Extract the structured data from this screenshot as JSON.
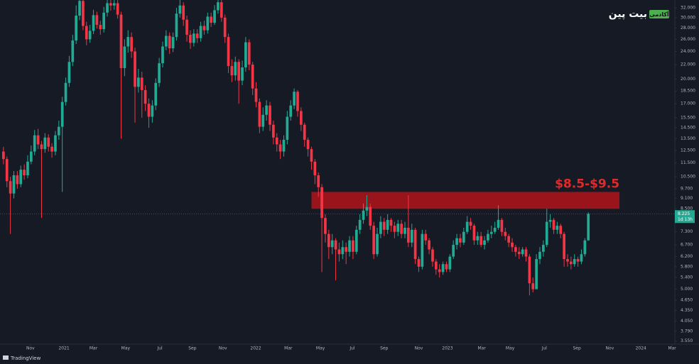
{
  "chart_data": {
    "type": "candlestick",
    "log_scale": true,
    "grid": false,
    "up_color": "#22ab94",
    "down_color": "#f23645",
    "zone_color": "#b2141a",
    "annotation_color": "#e12a2a",
    "ylim": [
      3.48,
      33.7
    ],
    "yticks": [
      {
        "value": 32,
        "label": "32.000"
      },
      {
        "value": 30,
        "label": "30.000"
      },
      {
        "value": 28,
        "label": "28.000"
      },
      {
        "value": 26,
        "label": "26.000"
      },
      {
        "value": 24,
        "label": "24.000"
      },
      {
        "value": 22,
        "label": "22.000"
      },
      {
        "value": 20,
        "label": "20.000"
      },
      {
        "value": 18.5,
        "label": "18.500"
      },
      {
        "value": 17,
        "label": "17.000"
      },
      {
        "value": 15.5,
        "label": "15.500"
      },
      {
        "value": 14.5,
        "label": "14.500"
      },
      {
        "value": 13.5,
        "label": "13.500"
      },
      {
        "value": 12.5,
        "label": "12.500"
      },
      {
        "value": 11.5,
        "label": "11.500"
      },
      {
        "value": 10.5,
        "label": "10.500"
      },
      {
        "value": 9.7,
        "label": "9.700"
      },
      {
        "value": 9.1,
        "label": "9.100"
      },
      {
        "value": 8.5,
        "label": "8.500"
      },
      {
        "value": 7.3,
        "label": "7.300"
      },
      {
        "value": 6.7,
        "label": "6.700"
      },
      {
        "value": 6.2,
        "label": "6.200"
      },
      {
        "value": 5.8,
        "label": "5.800"
      },
      {
        "value": 5.4,
        "label": "5.400"
      },
      {
        "value": 5,
        "label": "5.000"
      },
      {
        "value": 4.65,
        "label": "4.650"
      },
      {
        "value": 4.35,
        "label": "4.350"
      },
      {
        "value": 4.05,
        "label": "4.050"
      },
      {
        "value": 3.79,
        "label": "3.790"
      },
      {
        "value": 3.55,
        "label": "3.550"
      }
    ],
    "xlim": [
      -1,
      194
    ],
    "xticks": [
      {
        "value": 7.8,
        "label": "Nov"
      },
      {
        "value": 17.5,
        "label": "2021"
      },
      {
        "value": 26,
        "label": "Mar"
      },
      {
        "value": 35.3,
        "label": "May"
      },
      {
        "value": 45.2,
        "label": "Jul"
      },
      {
        "value": 54.6,
        "label": "Sep"
      },
      {
        "value": 63.4,
        "label": "Nov"
      },
      {
        "value": 72.9,
        "label": "2022"
      },
      {
        "value": 82.3,
        "label": "Mar"
      },
      {
        "value": 91.6,
        "label": "May"
      },
      {
        "value": 100.8,
        "label": "Jul"
      },
      {
        "value": 110,
        "label": "Sep"
      },
      {
        "value": 120,
        "label": "Nov"
      },
      {
        "value": 128.3,
        "label": "2023"
      },
      {
        "value": 138.2,
        "label": "Mar"
      },
      {
        "value": 146.4,
        "label": "May"
      },
      {
        "value": 156.3,
        "label": "Jul"
      },
      {
        "value": 165.7,
        "label": "Sep"
      },
      {
        "value": 175.2,
        "label": "Nov"
      },
      {
        "value": 184.2,
        "label": "2024"
      },
      {
        "value": 193.2,
        "label": "Mar"
      }
    ],
    "open": [
      12.4,
      11.8,
      10.2,
      9.4,
      10.6,
      10.0,
      11.0,
      10.6,
      11.6,
      12.4,
      13.8,
      13.0,
      12.6,
      13.6,
      12.8,
      12.4,
      13.8,
      14.6,
      17.2,
      19.5,
      22.4,
      25.8,
      30.4,
      33.5,
      28.4,
      26.0,
      27.5,
      30.5,
      28.6,
      27.8,
      31.0,
      33.0,
      32.5,
      33.0,
      30.6,
      21.5,
      24.8,
      26.4,
      24.0,
      19.0,
      20.2,
      18.6,
      17.0,
      15.6,
      16.8,
      19.5,
      22.2,
      24.8,
      26.6,
      24.5,
      26.4,
      30.8,
      32.5,
      29.6,
      26.8,
      25.4,
      27.0,
      26.2,
      28.4,
      27.6,
      30.2,
      29.0,
      31.5,
      33.2,
      30.0,
      26.4,
      21.8,
      20.5,
      22.4,
      19.8,
      21.6,
      25.5,
      22.0,
      18.8,
      17.2,
      14.6,
      15.8,
      16.8,
      14.8,
      13.6,
      13.0,
      12.4,
      13.4,
      15.6,
      16.8,
      18.4,
      16.2,
      14.8,
      13.4,
      12.6,
      11.6,
      10.6,
      9.8,
      8.0,
      7.2,
      6.6,
      6.9,
      6.5,
      6.3,
      6.6,
      6.4,
      6.9,
      6.4,
      7.4,
      7.9,
      8.4,
      8.6,
      7.6,
      6.3,
      7.2,
      7.8,
      7.4,
      7.9,
      7.6,
      7.3,
      7.7,
      7.2,
      7.5,
      6.8,
      7.4,
      6.1,
      5.8,
      7.2,
      6.9,
      6.5,
      6.0,
      5.7,
      5.6,
      5.9,
      5.7,
      6.2,
      6.7,
      7.0,
      6.8,
      7.3,
      7.8,
      7.6,
      6.9,
      7.1,
      6.7,
      6.9,
      7.2,
      7.3,
      7.5,
      7.9,
      7.3,
      7.1,
      6.8,
      6.6,
      6.4,
      6.3,
      6.5,
      6.2,
      5.2,
      5.0,
      6.1,
      6.4,
      6.7,
      7.8,
      7.9,
      7.4,
      7.6,
      7.2,
      6.1,
      6.0,
      5.9,
      6.1,
      6.0,
      6.3,
      6.9
    ],
    "high": [
      12.8,
      12.0,
      10.5,
      10.9,
      10.9,
      11.3,
      11.4,
      12.1,
      12.9,
      14.3,
      14.4,
      13.3,
      14.0,
      13.9,
      13.1,
      14.2,
      15.2,
      17.8,
      20.2,
      23.3,
      26.8,
      32.5,
      36,
      35,
      29.2,
      28.6,
      31.6,
      31.2,
      29.4,
      32.2,
      35,
      35,
      35,
      34.2,
      31.2,
      26.0,
      27.6,
      27.2,
      24.6,
      21.4,
      21.0,
      19.2,
      17.6,
      17.4,
      20.1,
      23.0,
      25.6,
      27.6,
      27.2,
      27.2,
      32.0,
      35,
      33.2,
      30.4,
      27.6,
      27.8,
      27.8,
      29.2,
      29.4,
      31.0,
      31.0,
      32.6,
      35,
      34.0,
      30.6,
      27.0,
      22.8,
      23.2,
      22.8,
      22.6,
      26.4,
      26.0,
      22.4,
      19.6,
      17.6,
      16.6,
      17.4,
      17.2,
      15.2,
      14.0,
      13.4,
      13.8,
      16.2,
      17.4,
      18.8,
      18.6,
      16.6,
      15.0,
      13.6,
      12.8,
      11.8,
      10.8,
      10.0,
      8.2,
      7.4,
      7.2,
      7.0,
      6.8,
      6.9,
      6.8,
      7.1,
      7.1,
      7.6,
      8.2,
      8.8,
      9.3,
      8.8,
      7.8,
      7.5,
      8.1,
      8.0,
      8.2,
      8.0,
      7.8,
      7.9,
      7.9,
      7.8,
      9.3,
      7.7,
      7.5,
      6.2,
      7.4,
      7.4,
      7.0,
      6.6,
      6.1,
      5.9,
      6.0,
      6.0,
      6.3,
      6.9,
      7.2,
      7.2,
      7.5,
      8.1,
      8.0,
      7.7,
      7.3,
      7.3,
      7.1,
      7.4,
      7.6,
      7.8,
      8.7,
      8.0,
      7.5,
      7.2,
      7.0,
      6.7,
      6.6,
      6.6,
      6.6,
      6.3,
      5.4,
      6.3,
      6.6,
      6.9,
      8.5,
      8.2,
      8.0,
      7.8,
      7.7,
      7.3,
      6.3,
      6.2,
      6.3,
      6.2,
      6.5,
      7.0,
      8.3
    ],
    "low": [
      11.4,
      9.8,
      7.2,
      9.1,
      9.7,
      9.8,
      10.3,
      10.4,
      11.4,
      12.1,
      12.6,
      8.0,
      12.3,
      12.4,
      11.9,
      12.1,
      13.4,
      9.5,
      16.8,
      19.0,
      21.8,
      25.2,
      29.5,
      27.6,
      25.0,
      25.4,
      26.9,
      27.9,
      26.8,
      27.2,
      30.2,
      31.4,
      31.6,
      29.8,
      13.5,
      20.4,
      23.8,
      23.0,
      15.0,
      18.3,
      15.5,
      16.2,
      14.5,
      15.0,
      16.3,
      19.0,
      21.6,
      24.2,
      23.6,
      23.9,
      25.8,
      30.0,
      28.4,
      25.6,
      24.4,
      24.8,
      25.4,
      25.6,
      26.8,
      27.0,
      28.2,
      28.6,
      30.8,
      29.2,
      25.4,
      20.8,
      19.6,
      19.8,
      17.0,
      19.2,
      21.0,
      21.2,
      18.0,
      16.6,
      14.0,
      14.2,
      15.2,
      14.2,
      13.0,
      12.4,
      11.8,
      12.0,
      13.0,
      15.2,
      16.4,
      15.6,
      14.2,
      12.8,
      12.0,
      11.0,
      10.0,
      9.2,
      5.6,
      6.8,
      6.1,
      6.3,
      5.3,
      6.0,
      6.1,
      5.9,
      6.2,
      6.1,
      6.3,
      7.2,
      7.7,
      8.1,
      7.4,
      6.1,
      6.2,
      7.0,
      7.1,
      7.2,
      7.3,
      7.0,
      7.1,
      7.0,
      7.0,
      6.6,
      6.6,
      5.9,
      5.6,
      5.7,
      6.7,
      6.3,
      5.8,
      5.5,
      5.4,
      5.5,
      5.6,
      5.6,
      6.1,
      6.5,
      6.6,
      6.7,
      7.2,
      7.4,
      6.7,
      6.7,
      6.6,
      6.5,
      6.8,
      7.0,
      7.2,
      7.4,
      7.1,
      6.9,
      6.6,
      6.4,
      6.2,
      6.1,
      6.2,
      6.0,
      4.8,
      4.9,
      5.0,
      5.9,
      6.2,
      6.6,
      7.5,
      7.2,
      7.2,
      7.0,
      5.8,
      5.8,
      5.7,
      5.8,
      5.8,
      5.9,
      6.2,
      6.9
    ],
    "close": [
      11.8,
      10.2,
      9.4,
      10.6,
      10.0,
      11.0,
      10.6,
      11.6,
      12.4,
      13.8,
      13.0,
      12.6,
      13.6,
      12.8,
      12.4,
      13.8,
      14.6,
      17.2,
      19.5,
      22.4,
      25.8,
      30.4,
      33.5,
      28.4,
      26.0,
      27.5,
      30.5,
      28.6,
      27.8,
      31.0,
      33.0,
      32.5,
      33.0,
      30.6,
      21.5,
      24.8,
      26.4,
      24.0,
      19.0,
      20.2,
      18.6,
      17.0,
      15.6,
      16.8,
      19.5,
      22.2,
      24.8,
      26.6,
      24.5,
      26.4,
      30.8,
      32.5,
      29.6,
      26.8,
      25.4,
      27.0,
      26.2,
      28.4,
      27.6,
      30.2,
      29.0,
      31.5,
      33.2,
      30.0,
      26.4,
      21.8,
      20.5,
      22.4,
      19.8,
      21.6,
      25.5,
      22.0,
      18.8,
      17.2,
      14.6,
      15.8,
      16.8,
      14.8,
      13.6,
      13.0,
      12.4,
      13.4,
      15.6,
      16.8,
      18.4,
      16.2,
      14.8,
      13.4,
      12.6,
      11.6,
      10.6,
      9.8,
      8.0,
      7.2,
      6.6,
      6.9,
      6.5,
      6.3,
      6.6,
      6.4,
      6.9,
      6.4,
      7.4,
      7.9,
      8.4,
      8.6,
      7.6,
      6.3,
      7.2,
      7.8,
      7.4,
      7.9,
      7.6,
      7.3,
      7.7,
      7.2,
      7.5,
      6.8,
      7.4,
      6.1,
      5.8,
      7.2,
      6.9,
      6.5,
      6.0,
      5.7,
      5.6,
      5.9,
      5.7,
      6.2,
      6.7,
      7.0,
      6.8,
      7.3,
      7.8,
      7.6,
      6.9,
      7.1,
      6.7,
      6.9,
      7.2,
      7.3,
      7.5,
      7.9,
      7.3,
      7.1,
      6.8,
      6.6,
      6.4,
      6.3,
      6.5,
      6.2,
      5.2,
      5.0,
      6.1,
      6.4,
      6.7,
      7.8,
      7.9,
      7.4,
      7.6,
      7.2,
      6.1,
      6.0,
      5.9,
      6.1,
      6.0,
      6.3,
      6.9,
      8.225
    ],
    "zone": {
      "label": "$8.5-$9.5",
      "low": 8.5,
      "high": 9.5,
      "x_start": 89,
      "x_end": 178
    },
    "last_price": {
      "value": 8.225,
      "countdown": "1d 13h"
    },
    "watermark": {
      "brand": "بیت پین",
      "badge": "آکادمی"
    },
    "footer": "TradingView"
  }
}
